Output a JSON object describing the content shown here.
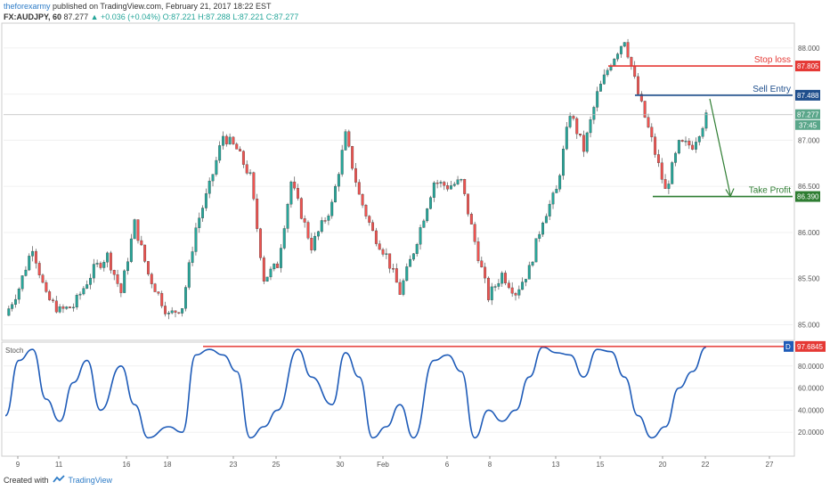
{
  "header": {
    "author": "theforexarmy",
    "published_text": "published on TradingView.com, February 21, 2017 18:22 EST",
    "symbol": "FX:AUDJPY, 60",
    "last": "87.277",
    "change": "+0.036 (+0.04%)",
    "open": "O:87.221",
    "high": "H:87.288",
    "low": "L:87.221",
    "close": "C:87.277"
  },
  "footer": {
    "created_with": "Created with",
    "brand": "TradingView"
  },
  "colors": {
    "up": "#26a69a",
    "down": "#ef5350",
    "stop": "#e53935",
    "entry": "#1e4e8c",
    "profit": "#2e7d32",
    "stoch": "#1e5bb8"
  },
  "chart_data": {
    "type": "candlestick",
    "price_axis": {
      "min": 84.85,
      "max": 88.25,
      "ticks": [
        "88.000",
        "87.500",
        "87.000",
        "86.500",
        "86.000",
        "85.500",
        "85.000"
      ]
    },
    "x_axis": {
      "ticks": [
        "9",
        "11",
        "16",
        "18",
        "23",
        "25",
        "30",
        "Feb",
        "6",
        "8",
        "13",
        "15",
        "20",
        "22",
        "27"
      ]
    },
    "price_path": [
      [
        0,
        85.1
      ],
      [
        4,
        85.4
      ],
      [
        8,
        85.85
      ],
      [
        12,
        85.3
      ],
      [
        16,
        85.15
      ],
      [
        20,
        85.2
      ],
      [
        26,
        85.6
      ],
      [
        30,
        85.75
      ],
      [
        34,
        85.35
      ],
      [
        38,
        86.1
      ],
      [
        42,
        85.55
      ],
      [
        48,
        85.1
      ],
      [
        52,
        85.2
      ],
      [
        56,
        86.05
      ],
      [
        60,
        86.5
      ],
      [
        64,
        87.05
      ],
      [
        68,
        86.9
      ],
      [
        72,
        86.6
      ],
      [
        76,
        85.5
      ],
      [
        80,
        85.65
      ],
      [
        84,
        86.55
      ],
      [
        90,
        85.85
      ],
      [
        96,
        86.3
      ],
      [
        100,
        87.05
      ],
      [
        104,
        86.4
      ],
      [
        108,
        86.0
      ],
      [
        112,
        85.75
      ],
      [
        116,
        85.35
      ],
      [
        120,
        85.8
      ],
      [
        126,
        86.55
      ],
      [
        130,
        86.5
      ],
      [
        134,
        86.55
      ],
      [
        138,
        85.9
      ],
      [
        142,
        85.3
      ],
      [
        146,
        85.55
      ],
      [
        150,
        85.35
      ],
      [
        154,
        85.6
      ],
      [
        158,
        86.15
      ],
      [
        162,
        86.45
      ],
      [
        166,
        87.3
      ],
      [
        170,
        86.9
      ],
      [
        174,
        87.5
      ],
      [
        178,
        87.85
      ],
      [
        182,
        88.1
      ],
      [
        186,
        87.5
      ],
      [
        190,
        87.0
      ],
      [
        194,
        86.45
      ],
      [
        198,
        86.95
      ],
      [
        202,
        86.95
      ],
      [
        206,
        87.25
      ]
    ],
    "stoch_axis": {
      "min": 0,
      "max": 100,
      "ticks": [
        "80.0000",
        "60.0000",
        "40.0000",
        "20.0000"
      ]
    },
    "stoch_path": [
      [
        0,
        35
      ],
      [
        4,
        85
      ],
      [
        8,
        95
      ],
      [
        12,
        50
      ],
      [
        16,
        30
      ],
      [
        20,
        65
      ],
      [
        24,
        85
      ],
      [
        28,
        40
      ],
      [
        34,
        80
      ],
      [
        38,
        45
      ],
      [
        42,
        15
      ],
      [
        48,
        25
      ],
      [
        52,
        20
      ],
      [
        56,
        90
      ],
      [
        60,
        95
      ],
      [
        64,
        90
      ],
      [
        68,
        75
      ],
      [
        72,
        15
      ],
      [
        76,
        25
      ],
      [
        80,
        40
      ],
      [
        86,
        95
      ],
      [
        90,
        70
      ],
      [
        96,
        45
      ],
      [
        100,
        92
      ],
      [
        104,
        70
      ],
      [
        108,
        15
      ],
      [
        112,
        25
      ],
      [
        116,
        45
      ],
      [
        120,
        15
      ],
      [
        126,
        85
      ],
      [
        130,
        90
      ],
      [
        134,
        75
      ],
      [
        138,
        15
      ],
      [
        142,
        40
      ],
      [
        146,
        30
      ],
      [
        150,
        40
      ],
      [
        154,
        70
      ],
      [
        158,
        97
      ],
      [
        162,
        92
      ],
      [
        166,
        90
      ],
      [
        170,
        70
      ],
      [
        174,
        95
      ],
      [
        178,
        93
      ],
      [
        182,
        70
      ],
      [
        186,
        35
      ],
      [
        190,
        15
      ],
      [
        194,
        25
      ],
      [
        198,
        60
      ],
      [
        202,
        75
      ],
      [
        206,
        97
      ]
    ],
    "stoch_label": "Stoch",
    "stoch_value": "97.6845",
    "stoch_badge": "D",
    "last_price_label": "87.277",
    "countdown_label": "37:45",
    "levels": [
      {
        "name": "Stop loss",
        "value": 87.805,
        "label": "87.805",
        "color": "#e53935"
      },
      {
        "name": "Sell Entry",
        "value": 87.488,
        "label": "87.488",
        "color": "#1e4e8c"
      },
      {
        "name": "Take Profit",
        "value": 86.39,
        "label": "86.390",
        "color": "#2e7d32"
      }
    ]
  }
}
